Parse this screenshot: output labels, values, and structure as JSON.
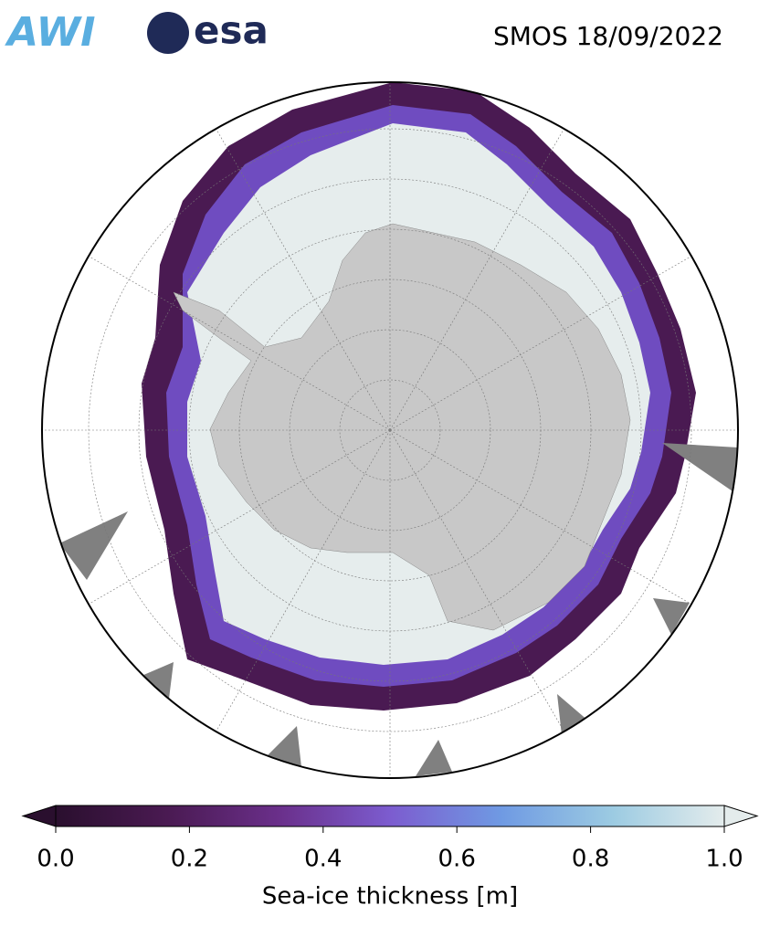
{
  "header": {
    "logos": [
      "AWI",
      "esa"
    ],
    "title": "SMOS 18/09/2022"
  },
  "colorbar": {
    "label": "Sea-ice thickness [m]",
    "lim": [
      0,
      1
    ],
    "ticks": [
      {
        "value": 0,
        "label": "0.0"
      },
      0.2,
      0.4,
      0.6,
      0.8,
      {
        "value": 1,
        "label": "1.0"
      }
    ],
    "colors": [
      "#2a0f2e",
      "#4a1a52",
      "#6a2f8a",
      "#7c5ccf",
      "#6f9ae3",
      "#9ccbe2",
      "#e4ecec"
    ]
  }
}
